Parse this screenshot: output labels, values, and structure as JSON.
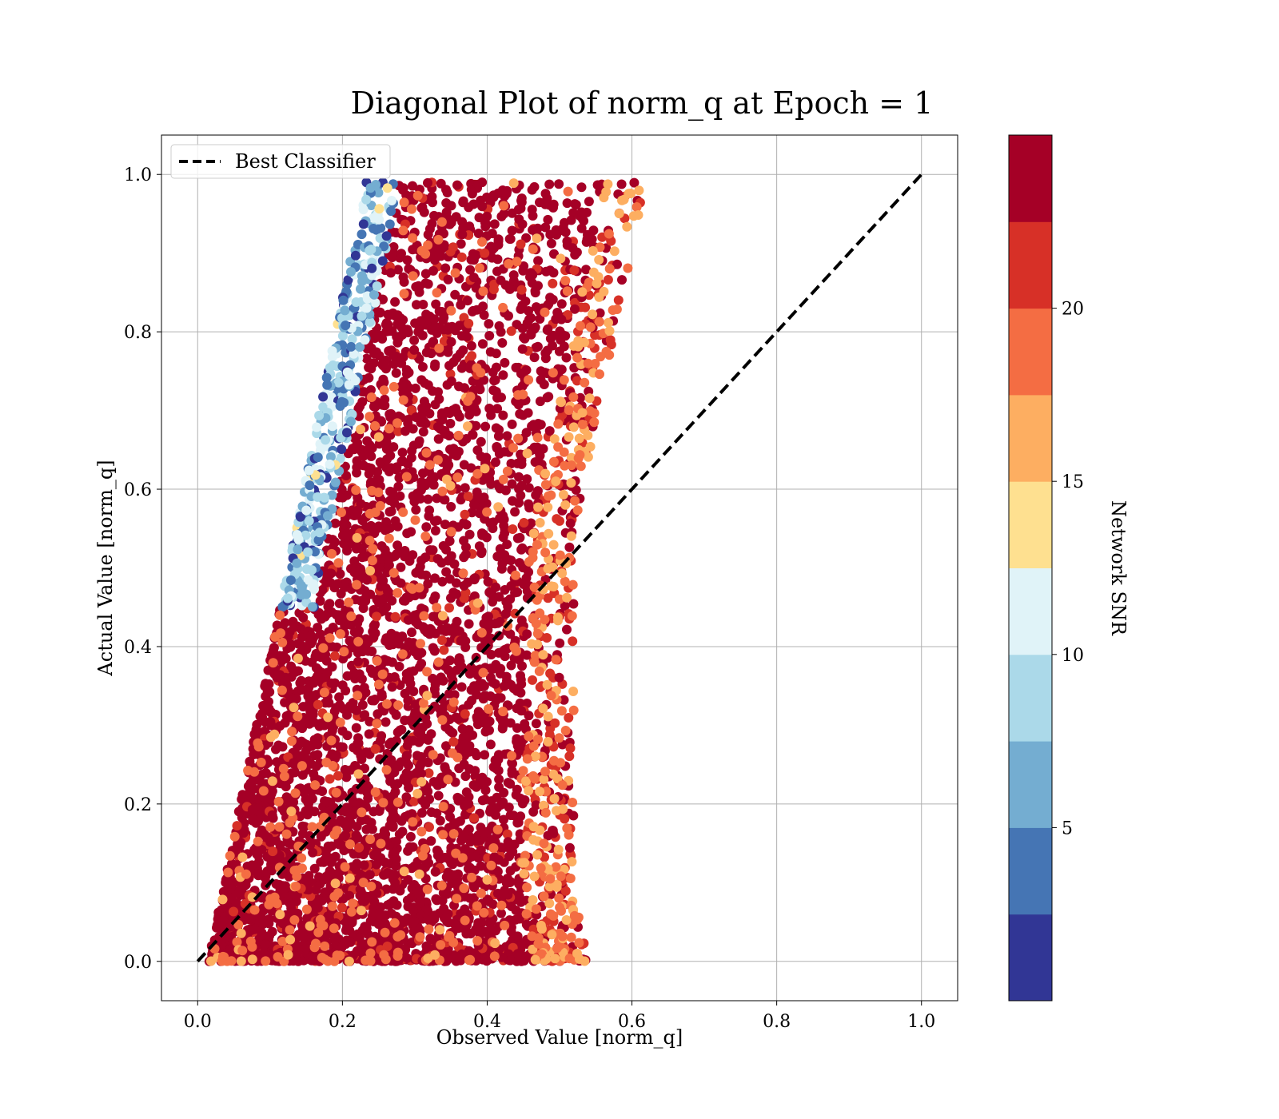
{
  "chart_data": {
    "type": "scatter",
    "title": "Diagonal Plot of norm_q at Epoch = 1",
    "xlabel": "Observed Value [norm_q]",
    "ylabel": "Actual Value [norm_q]",
    "xlim": [
      -0.05,
      1.05
    ],
    "ylim": [
      -0.05,
      1.05
    ],
    "xticks": [
      "0.0",
      "0.2",
      "0.4",
      "0.6",
      "0.8",
      "1.0"
    ],
    "yticks": [
      "0.0",
      "0.2",
      "0.4",
      "0.6",
      "0.8",
      "1.0"
    ],
    "grid": true,
    "legend": {
      "placement": "top-left",
      "entries": [
        "Best Classifier"
      ]
    },
    "reference_line": {
      "name": "Best Classifier",
      "style": "dashed",
      "color": "#000000",
      "x": [
        0.0,
        1.0
      ],
      "y": [
        0.0,
        1.0
      ]
    },
    "colorbar": {
      "label": "Network SNR",
      "range": [
        0,
        25
      ],
      "tick_values": [
        5,
        10,
        15,
        20
      ],
      "ticks": [
        "5",
        "10",
        "15",
        "20"
      ],
      "levels": 10,
      "colors": [
        "#313695",
        "#4575b4",
        "#74add1",
        "#abd9e9",
        "#e0f3f8",
        "#fee090",
        "#fdae61",
        "#f46d43",
        "#d73027",
        "#a50026"
      ]
    },
    "scatter_summary": {
      "x_range": [
        0.01,
        0.62
      ],
      "y_range": [
        0.0,
        0.99
      ],
      "note_dense_region": "dense dark-red mass, low-SNR points concentrated near x 0.15-0.25 at high y"
    }
  }
}
